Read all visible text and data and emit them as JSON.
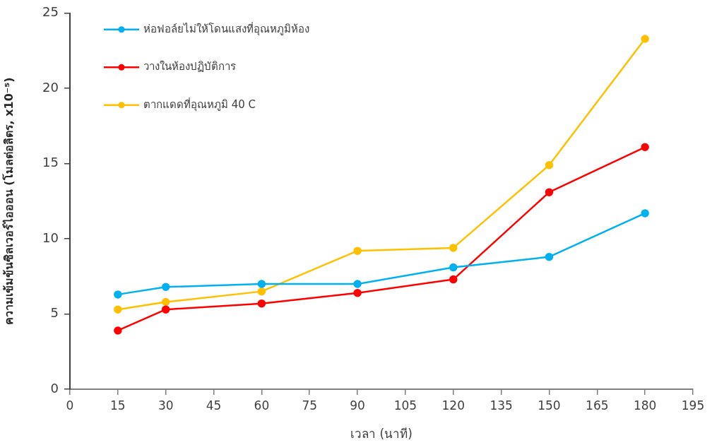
{
  "chart_data": {
    "type": "line",
    "xlabel": "เวลา (นาที)",
    "ylabel": "ความเข้มข้นซิลเวอร์ไอออน (โมลต่อลิตร, x10⁻⁵)",
    "x": [
      15,
      30,
      60,
      90,
      120,
      150,
      180
    ],
    "series": [
      {
        "name": "ห่อฟอล์ยไม่ให้โดนแสงที่อุณหภูมิห้อง",
        "color": "#00b0f0",
        "values": [
          6.3,
          6.8,
          7.0,
          7.0,
          8.1,
          8.8,
          11.7
        ]
      },
      {
        "name": "วางในห้องปฏิบัติการ",
        "color": "#ff0000",
        "values": [
          3.9,
          5.3,
          5.7,
          6.4,
          7.3,
          13.1,
          16.1
        ]
      },
      {
        "name": "ตากแดดที่อุณหภูมิ 40 C",
        "color": "#ffc000",
        "values": [
          5.3,
          5.8,
          6.5,
          9.2,
          9.4,
          14.9,
          23.3
        ]
      }
    ],
    "xlim": [
      0,
      195
    ],
    "xticks": [
      0,
      15,
      30,
      45,
      60,
      75,
      90,
      105,
      120,
      135,
      150,
      165,
      180,
      195
    ],
    "ylim": [
      0,
      25
    ],
    "yticks": [
      0,
      5,
      10,
      15,
      20,
      25
    ],
    "legend": "top left",
    "marker": "circle",
    "line_style": "solid"
  }
}
